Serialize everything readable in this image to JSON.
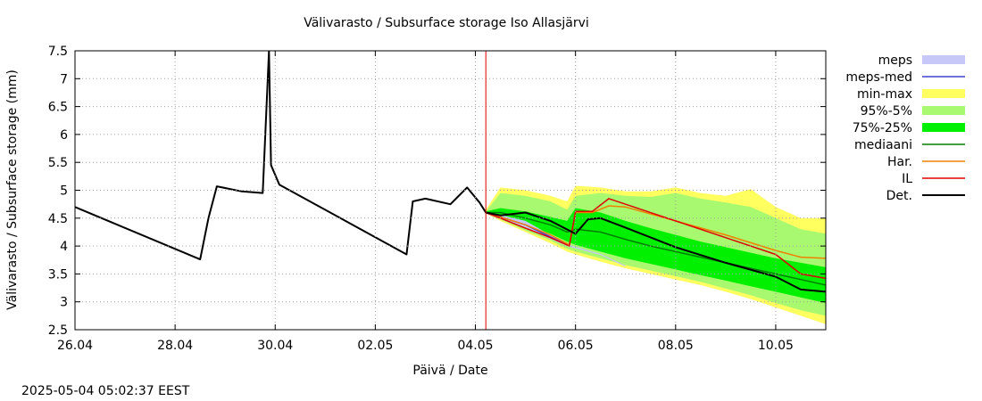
{
  "chart_data": {
    "type": "line",
    "title": "Välivarasto / Subsurface storage  Iso Allasjärvi",
    "xlabel": "Päivä / Date",
    "ylabel": "Välivarasto / Subsurface storage (mm)",
    "x_tick_labels": [
      "26.04",
      "28.04",
      "30.04",
      "02.05",
      "04.05",
      "06.05",
      "08.05",
      "10.05"
    ],
    "x_tick_dates": [
      "2025-04-26",
      "2025-04-28",
      "2025-04-30",
      "2025-05-02",
      "2025-05-04",
      "2025-05-06",
      "2025-05-08",
      "2025-05-10"
    ],
    "xlim": [
      "2025-04-26",
      "2025-05-11"
    ],
    "ylim": [
      2.5,
      7.5
    ],
    "y_ticks": [
      2.5,
      3,
      3.5,
      4,
      4.5,
      5,
      5.5,
      6,
      6.5,
      7,
      7.5
    ],
    "grid": true,
    "legend_position": "right",
    "forecast_start": "2025-05-04 05:00",
    "bands": [
      {
        "name": "meps",
        "color": "#c8c8f8",
        "x": [
          "2025-05-04 05:00",
          "2025-05-05 00:00",
          "2025-05-05 20:00",
          "2025-05-06 12:00",
          "2025-05-07 00:00"
        ],
        "lower": [
          4.58,
          4.32,
          4.0,
          3.84,
          3.63
        ],
        "upper": [
          4.62,
          4.45,
          4.03,
          3.86,
          3.65
        ]
      },
      {
        "name": "min-max",
        "color": "#ffff60",
        "x": [
          "2025-05-04 05:00",
          "2025-05-04 12:00",
          "2025-05-05 00:00",
          "2025-05-05 12:00",
          "2025-05-05 20:00",
          "2025-05-06 00:00",
          "2025-05-06 12:00",
          "2025-05-07 00:00",
          "2025-05-07 12:00",
          "2025-05-08 00:00",
          "2025-05-08 12:00",
          "2025-05-09 00:00",
          "2025-05-09 12:00",
          "2025-05-10 00:00",
          "2025-05-10 12:00",
          "2025-05-11 00:00"
        ],
        "lower": [
          4.58,
          4.45,
          4.25,
          4.05,
          3.9,
          3.85,
          3.72,
          3.6,
          3.5,
          3.4,
          3.3,
          3.18,
          3.05,
          2.9,
          2.75,
          2.6
        ],
        "upper": [
          4.65,
          5.05,
          5.0,
          4.9,
          4.8,
          5.08,
          5.05,
          4.98,
          4.98,
          5.05,
          4.95,
          4.9,
          5.02,
          4.7,
          4.5,
          4.5
        ]
      },
      {
        "name": "95%-5%",
        "color": "#a8f870",
        "x": [
          "2025-05-04 05:00",
          "2025-05-04 12:00",
          "2025-05-05 00:00",
          "2025-05-05 12:00",
          "2025-05-05 20:00",
          "2025-05-06 00:00",
          "2025-05-06 12:00",
          "2025-05-07 00:00",
          "2025-05-07 12:00",
          "2025-05-08 00:00",
          "2025-05-08 12:00",
          "2025-05-09 00:00",
          "2025-05-09 12:00",
          "2025-05-10 00:00",
          "2025-05-10 12:00",
          "2025-05-11 00:00"
        ],
        "lower": [
          4.58,
          4.48,
          4.28,
          4.1,
          3.95,
          3.9,
          3.78,
          3.66,
          3.56,
          3.46,
          3.36,
          3.24,
          3.12,
          2.98,
          2.85,
          2.75
        ],
        "upper": [
          4.62,
          4.95,
          4.9,
          4.8,
          4.65,
          4.9,
          4.95,
          4.9,
          4.88,
          4.95,
          4.85,
          4.78,
          4.7,
          4.5,
          4.3,
          4.22
        ]
      },
      {
        "name": "75%-25%",
        "color": "#00f000",
        "x": [
          "2025-05-04 05:00",
          "2025-05-04 12:00",
          "2025-05-05 00:00",
          "2025-05-05 12:00",
          "2025-05-05 20:00",
          "2025-05-06 00:00",
          "2025-05-06 12:00",
          "2025-05-07 00:00",
          "2025-05-07 12:00",
          "2025-05-08 00:00",
          "2025-05-08 12:00",
          "2025-05-09 00:00",
          "2025-05-09 12:00",
          "2025-05-10 00:00",
          "2025-05-10 12:00",
          "2025-05-11 00:00"
        ],
        "lower": [
          4.58,
          4.52,
          4.38,
          4.22,
          4.08,
          4.02,
          3.9,
          3.78,
          3.68,
          3.58,
          3.48,
          3.38,
          3.28,
          3.18,
          3.08,
          2.98
        ],
        "upper": [
          4.62,
          4.68,
          4.62,
          4.52,
          4.45,
          4.68,
          4.6,
          4.45,
          4.32,
          4.2,
          4.08,
          3.98,
          3.88,
          3.78,
          3.7,
          3.62
        ]
      }
    ],
    "series": [
      {
        "name": "meps-med",
        "color": "#4040d0",
        "x": [
          "2025-05-04 05:00",
          "2025-05-05 00:00",
          "2025-05-05 20:00"
        ],
        "values": [
          4.6,
          4.38,
          4.02
        ]
      },
      {
        "name": "mediaani",
        "color": "#008000",
        "x": [
          "2025-05-04 05:00",
          "2025-05-04 12:00",
          "2025-05-05 00:00",
          "2025-05-05 12:00",
          "2025-05-05 20:00",
          "2025-05-06 00:00",
          "2025-05-06 12:00",
          "2025-05-07 00:00",
          "2025-05-07 12:00",
          "2025-05-08 00:00",
          "2025-05-08 12:00",
          "2025-05-09 00:00",
          "2025-05-09 12:00",
          "2025-05-10 00:00",
          "2025-05-10 12:00",
          "2025-05-11 00:00"
        ],
        "values": [
          4.6,
          4.6,
          4.5,
          4.38,
          4.25,
          4.3,
          4.25,
          4.12,
          4.0,
          3.9,
          3.8,
          3.7,
          3.6,
          3.5,
          3.4,
          3.3
        ]
      },
      {
        "name": "Har.",
        "color": "#f08000",
        "x": [
          "2025-05-04 05:00",
          "2025-05-04 12:00",
          "2025-05-05 00:00",
          "2025-05-05 12:00",
          "2025-05-05 21:00",
          "2025-05-06 00:00",
          "2025-05-06 08:00",
          "2025-05-06 16:00",
          "2025-05-07 00:00",
          "2025-05-08 00:00",
          "2025-05-09 00:00",
          "2025-05-10 00:00",
          "2025-05-10 12:00",
          "2025-05-11 00:00"
        ],
        "values": [
          4.6,
          4.52,
          4.38,
          4.2,
          4.02,
          4.6,
          4.6,
          4.72,
          4.7,
          4.45,
          4.2,
          3.92,
          3.8,
          3.78
        ]
      },
      {
        "name": "IL",
        "color": "#e00000",
        "x": [
          "2025-05-04 05:00",
          "2025-05-04 12:00",
          "2025-05-05 00:00",
          "2025-05-05 12:00",
          "2025-05-05 21:00",
          "2025-05-06 00:00",
          "2025-05-06 08:00",
          "2025-05-06 16:00",
          "2025-05-07 00:00",
          "2025-05-08 00:00",
          "2025-05-09 00:00",
          "2025-05-10 00:00",
          "2025-05-10 12:00",
          "2025-05-11 00:00"
        ],
        "values": [
          4.6,
          4.5,
          4.32,
          4.15,
          4.0,
          4.62,
          4.62,
          4.85,
          4.75,
          4.45,
          4.15,
          3.85,
          3.5,
          3.42
        ]
      },
      {
        "name": "Det.",
        "color": "#000000",
        "x": [
          "2025-04-26 00:00",
          "2025-04-28 12:00",
          "2025-04-28 16:00",
          "2025-04-28 20:00",
          "2025-04-29 08:00",
          "2025-04-29 18:00",
          "2025-04-29 21:00",
          "2025-04-29 22:00",
          "2025-04-30 02:00",
          "2025-05-02 15:00",
          "2025-05-02 18:00",
          "2025-05-03 00:00",
          "2025-05-03 12:00",
          "2025-05-03 20:00",
          "2025-05-04 02:00",
          "2025-05-04 05:00",
          "2025-05-04 12:00",
          "2025-05-05 00:00",
          "2025-05-05 12:00",
          "2025-05-06 00:00",
          "2025-05-06 06:00",
          "2025-05-06 12:00",
          "2025-05-07 00:00",
          "2025-05-08 00:00",
          "2025-05-09 00:00",
          "2025-05-10 00:00",
          "2025-05-10 12:00",
          "2025-05-11 00:00"
        ],
        "values": [
          4.7,
          3.76,
          4.5,
          5.07,
          4.98,
          4.95,
          7.5,
          5.45,
          5.1,
          3.85,
          4.8,
          4.85,
          4.75,
          5.05,
          4.78,
          4.6,
          4.55,
          4.6,
          4.45,
          4.22,
          4.48,
          4.5,
          4.33,
          3.98,
          3.7,
          3.45,
          3.22,
          3.18
        ]
      }
    ],
    "legend": [
      {
        "label": "meps",
        "kind": "box",
        "color": "#c8c8f8"
      },
      {
        "label": "meps-med",
        "kind": "line",
        "color": "#4040d0"
      },
      {
        "label": "min-max",
        "kind": "box",
        "color": "#ffff60"
      },
      {
        "label": "95%-5%",
        "kind": "box",
        "color": "#a8f870"
      },
      {
        "label": "75%-25%",
        "kind": "box",
        "color": "#00f000"
      },
      {
        "label": "mediaani",
        "kind": "line",
        "color": "#008000"
      },
      {
        "label": "Har.",
        "kind": "line",
        "color": "#f08000"
      },
      {
        "label": "IL",
        "kind": "line",
        "color": "#e00000"
      },
      {
        "label": "Det.",
        "kind": "line",
        "color": "#000000"
      }
    ]
  },
  "timestamp": "2025-05-04  05:02:37 EEST"
}
